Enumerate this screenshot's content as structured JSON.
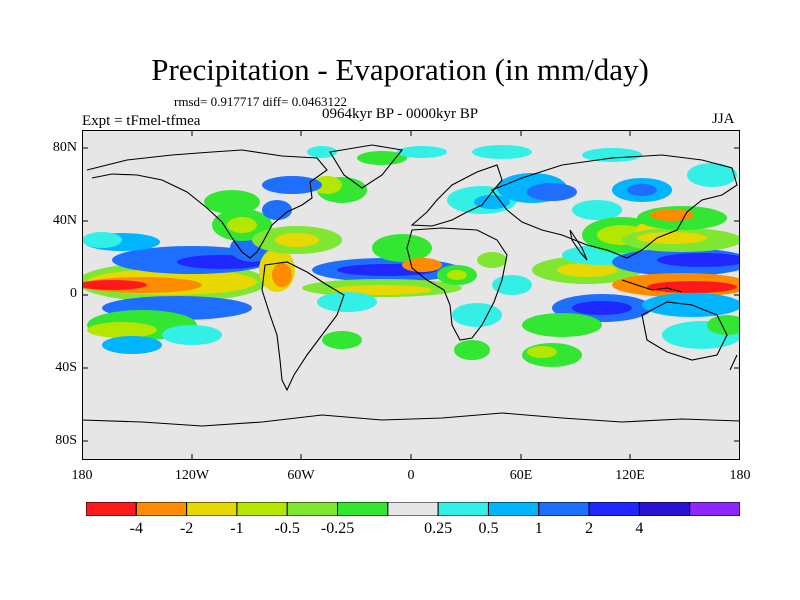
{
  "title": "Precipitation - Evaporation (in mm/day)",
  "stats": "rmsd= 0.917717 diff= 0.0463122",
  "expt": "Expt = tFmel-tfmea",
  "period": "0964kyr BP - 0000kyr BP",
  "season": "JJA",
  "y_ticks": [
    "80N",
    "40N",
    "0",
    "40S",
    "80S"
  ],
  "x_ticks": [
    "180",
    "120W",
    "60W",
    "0",
    "60E",
    "120E",
    "180"
  ],
  "colorbar": {
    "colors": [
      "#ff1a1a",
      "#ff8c00",
      "#e6d800",
      "#b4e600",
      "#7fe632",
      "#32e632",
      "#e6e6e6",
      "#32f0e6",
      "#00b4ff",
      "#1e6eff",
      "#1e28ff",
      "#2814d2",
      "#8c28ff"
    ],
    "labels": [
      "-4",
      "-2",
      "-1",
      "-0.5",
      "-0.25",
      "0.25",
      "0.5",
      "1",
      "2",
      "4"
    ]
  }
}
